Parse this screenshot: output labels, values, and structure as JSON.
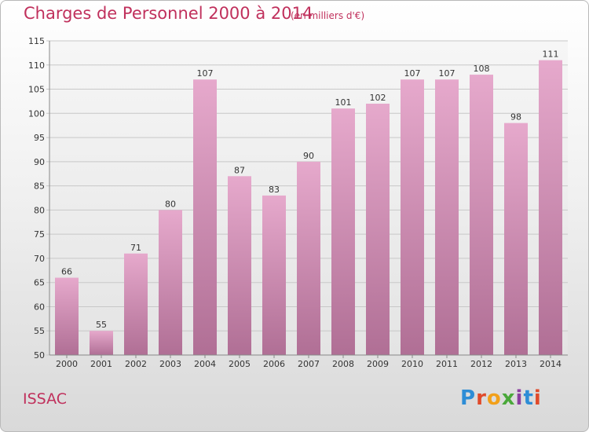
{
  "header": {
    "title": "Charges de Personnel 2000 à 2014",
    "subtitle": "(en milliers d'€)"
  },
  "footer": {
    "commune": "ISSAC",
    "logo_text": "Proxiti",
    "logo_colors": [
      "#2e8dd6",
      "#e04a2a",
      "#f2a01a",
      "#4aa83a",
      "#8b3fa0",
      "#2e8dd6",
      "#e04a2a"
    ]
  },
  "chart_data": {
    "type": "bar",
    "title": "Charges de Personnel 2000 à 2014",
    "subtitle": "(en milliers d'€)",
    "categories": [
      "2000",
      "2001",
      "2002",
      "2003",
      "2004",
      "2005",
      "2006",
      "2007",
      "2008",
      "2009",
      "2010",
      "2011",
      "2012",
      "2013",
      "2014"
    ],
    "values": [
      66,
      55,
      71,
      80,
      107,
      87,
      83,
      90,
      101,
      102,
      107,
      107,
      108,
      98,
      111
    ],
    "ylim": [
      50,
      115
    ],
    "yticks": [
      50,
      55,
      60,
      65,
      70,
      75,
      80,
      85,
      90,
      95,
      100,
      105,
      110,
      115
    ],
    "grid": true,
    "bar_color_top": "#e6a9cc",
    "bar_color_bottom": "#b06f95"
  }
}
